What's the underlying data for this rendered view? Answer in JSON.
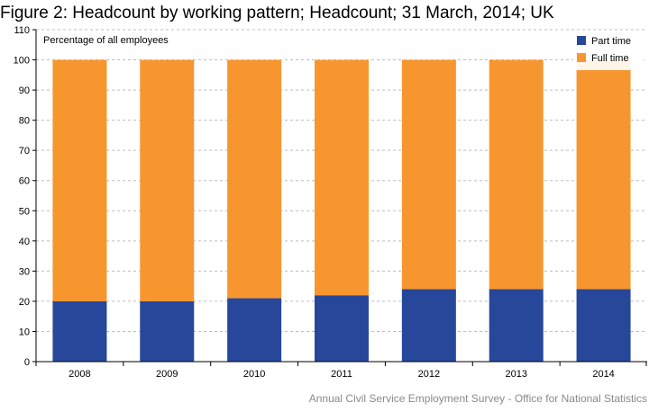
{
  "figure": {
    "title": "Figure 2: Headcount by working pattern; Headcount; 31 March, 2014; UK",
    "source": "Annual Civil Service Employment Survey - Office for National Statistics"
  },
  "chart_data": {
    "type": "bar",
    "stacked": true,
    "categories": [
      "2008",
      "2009",
      "2010",
      "2011",
      "2012",
      "2013",
      "2014"
    ],
    "series": [
      {
        "name": "Part time",
        "values": [
          20,
          20,
          21,
          22,
          24,
          24,
          24
        ],
        "color": "#27479a"
      },
      {
        "name": "Full time",
        "values": [
          80,
          80,
          79,
          78,
          76,
          76,
          76
        ],
        "color": "#f7962f"
      }
    ],
    "ylabel": "Percentage of all employees",
    "ylim": [
      0,
      110
    ],
    "yticks": [
      0,
      10,
      20,
      30,
      40,
      50,
      60,
      70,
      80,
      90,
      100,
      110
    ],
    "grid": true,
    "legend": "top-right"
  }
}
